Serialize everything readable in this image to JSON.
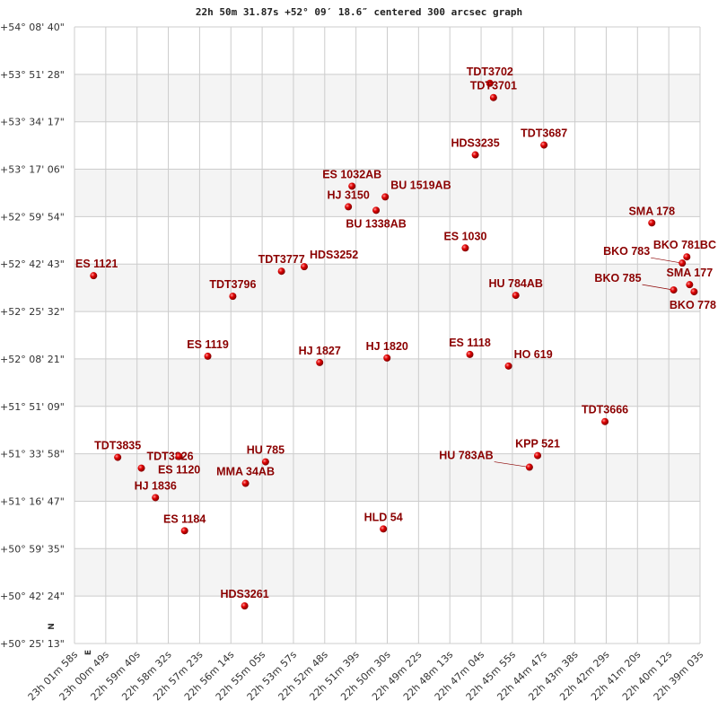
{
  "chart_data": {
    "type": "scatter",
    "title": "22h 50m 31.87s +52° 09′ 18.6″ centered 300 arcsec graph",
    "xlabel": "",
    "ylabel": "",
    "x_axis": "right ascension (decreasing to the right)",
    "xlim": [
      "23h 01m 58s",
      "22h 39m 03s"
    ],
    "ylim": [
      "+50° 25' 13\"",
      "+54° 08' 40\""
    ],
    "grid": true,
    "compass": {
      "north": "N",
      "east": "E"
    },
    "colors": {
      "point": "#dd0000",
      "label": "#8b0000",
      "band": "#f4f4f4",
      "grid": "#cccccc"
    },
    "x_ticks": [
      "23h 01m 58s",
      "23h 00m 49s",
      "22h 59m 40s",
      "22h 58m 32s",
      "22h 57m 23s",
      "22h 56m 14s",
      "22h 55m 05s",
      "22h 53m 57s",
      "22h 52m 48s",
      "22h 51m 39s",
      "22h 50m 30s",
      "22h 49m 22s",
      "22h 48m 13s",
      "22h 47m 04s",
      "22h 45m 55s",
      "22h 44m 47s",
      "22h 43m 38s",
      "22h 42m 29s",
      "22h 41m 20s",
      "22h 40m 12s",
      "22h 39m 03s"
    ],
    "y_ticks": [
      "+54° 08' 40\"",
      "+53° 51' 28\"",
      "+53° 34' 17\"",
      "+53° 17' 06\"",
      "+52° 59' 54\"",
      "+52° 42' 43\"",
      "+52° 25' 32\"",
      "+52° 08' 21\"",
      "+51° 51' 09\"",
      "+51° 33' 58\"",
      "+51° 16' 47\"",
      "+50° 59' 35\"",
      "+50° 42' 24\"",
      "+50° 25' 13\""
    ],
    "points": [
      {
        "label": "ES 1121",
        "ra": "23h 01m 16s",
        "dec": "+52° 38' 31\""
      },
      {
        "label": "TDT3796",
        "ra": "22h 56m 10s",
        "dec": "+52° 31' 03\""
      },
      {
        "label": "TDT3777",
        "ra": "22h 54m 23s",
        "dec": "+52° 40' 08\""
      },
      {
        "label": "HDS3252",
        "ra": "22h 53m 33s",
        "dec": "+52° 41' 46\""
      },
      {
        "label": "ES 1119",
        "ra": "22h 57m 05s",
        "dec": "+52° 09' 20\""
      },
      {
        "label": "HJ 1827",
        "ra": "22h 52m 59s",
        "dec": "+52° 07' 03\""
      },
      {
        "label": "HJ 1820",
        "ra": "22h 50m 31s",
        "dec": "+52° 08' 41\""
      },
      {
        "label": "ES 1118",
        "ra": "22h 47m 29s",
        "dec": "+52° 09' 59\""
      },
      {
        "label": "HO  619",
        "ra": "22h 46m 04s",
        "dec": "+52° 05' 46\""
      },
      {
        "label": "HU  784AB",
        "ra": "22h 45m 48s",
        "dec": "+52° 31' 23\""
      },
      {
        "label": "ES 1030",
        "ra": "22h 47m 39s",
        "dec": "+52° 48' 34\""
      },
      {
        "label": "SMA 178",
        "ra": "22h 40m 49s",
        "dec": "+52° 57' 39\""
      },
      {
        "label": "TDT3666",
        "ra": "22h 42m 32s",
        "dec": "+51° 45' 39\""
      },
      {
        "label": "KPP 521",
        "ra": "22h 45m 00s",
        "dec": "+51° 33' 20\""
      },
      {
        "label": "HU  783AB",
        "ra": "22h 45m 18s",
        "dec": "+51° 29' 07\""
      },
      {
        "label": "HU  785",
        "ra": "22h 54m 58s",
        "dec": "+51° 31' 03\""
      },
      {
        "label": "MMA  34AB",
        "ra": "22h 55m 42s",
        "dec": "+51° 23' 16\""
      },
      {
        "label": "TDT3835",
        "ra": "23h 00m 23s",
        "dec": "+51° 32' 41\""
      },
      {
        "label": "TDT3826",
        "ra": "22h 59m 31s",
        "dec": "+51° 28' 47\""
      },
      {
        "label": "ES 1120",
        "ra": "22h 58m 08s",
        "dec": "+51° 33' 00\""
      },
      {
        "label": "HJ 1836",
        "ra": "22h 59m 00s",
        "dec": "+51° 18' 05\""
      },
      {
        "label": "ES 1184",
        "ra": "22h 57m 56s",
        "dec": "+51° 06' 05\""
      },
      {
        "label": "HLD  54",
        "ra": "22h 50m 39s",
        "dec": "+51° 06' 44\""
      },
      {
        "label": "HDS3261",
        "ra": "22h 55m 44s",
        "dec": "+50° 38' 50\""
      },
      {
        "label": "TDT3702",
        "ra": "22h 46m 45s",
        "dec": "+53° 48' 15\""
      },
      {
        "label": "TDT3701",
        "ra": "22h 46m 37s",
        "dec": "+53° 43' 04\""
      },
      {
        "label": "HDS3235",
        "ra": "22h 47m 17s",
        "dec": "+53° 22' 18\""
      },
      {
        "label": "TDT3687",
        "ra": "22h 44m 46s",
        "dec": "+53° 25' 52\""
      },
      {
        "label": "ES 1032AB",
        "ra": "22h 51m 48s",
        "dec": "+53° 10' 57\""
      },
      {
        "label": "BU 1519AB",
        "ra": "22h 50m 35s",
        "dec": "+53° 07' 04\""
      },
      {
        "label": "HJ 3150",
        "ra": "22h 51m 56s",
        "dec": "+53° 03' 29\""
      },
      {
        "label": "BU 1338AB",
        "ra": "22h 50m 55s",
        "dec": "+53° 02' 12\""
      },
      {
        "label": "BKO 781BC",
        "ra": "22h 39m 32s",
        "dec": "+52° 45' 20\""
      },
      {
        "label": "BKO 783",
        "ra": "22h 39m 42s",
        "dec": "+52° 43' 04\""
      },
      {
        "label": "SMA 177",
        "ra": "22h 39m 26s",
        "dec": "+52° 35' 16\""
      },
      {
        "label": "BKO 785",
        "ra": "22h 40m 01s",
        "dec": "+52° 33' 20\""
      },
      {
        "label": "BKO 778",
        "ra": "22h 39m 16s",
        "dec": "+52° 32' 41\""
      }
    ]
  }
}
